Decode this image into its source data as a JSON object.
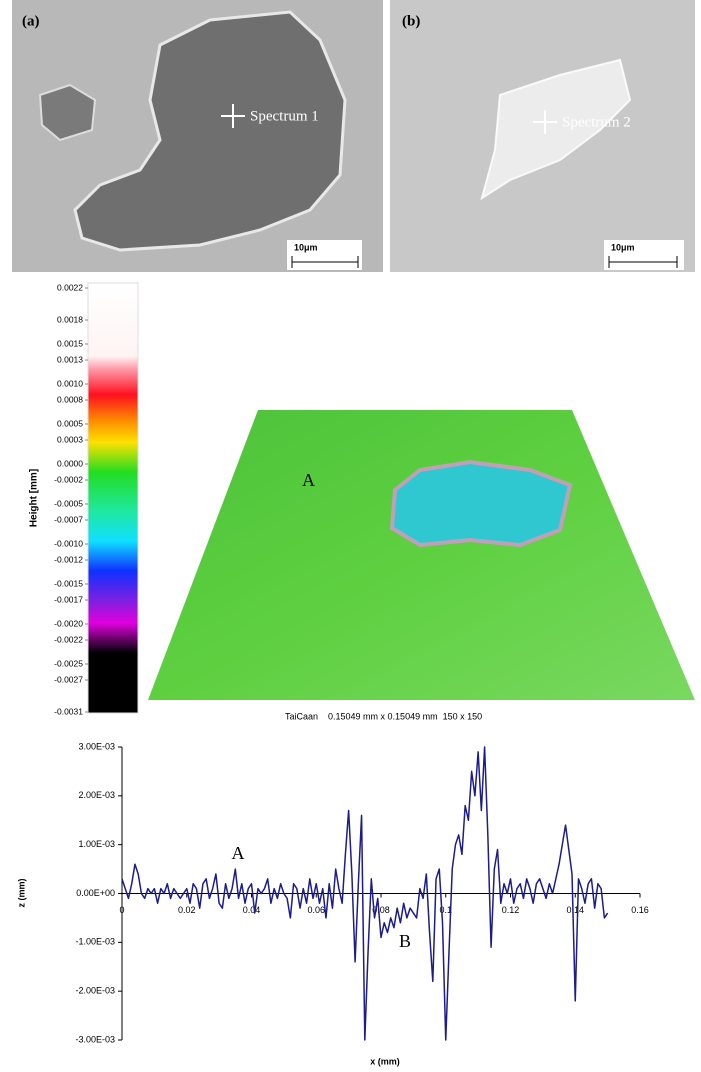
{
  "panels": [
    {
      "label": "(a)",
      "annotation": "Spectrum 1",
      "scale": "10μm"
    },
    {
      "label": "(b)",
      "annotation": "Spectrum 2",
      "scale": "10μm"
    }
  ],
  "surface": {
    "colorbar_label": "Height [mm]",
    "ylim": [
      -0.0031,
      0.0022
    ],
    "ticks": [
      0.0022,
      0.0018,
      0.0015,
      0.0013,
      {
        "value": 0.001,
        "label": "0.0010"
      },
      0.0008,
      0.0005,
      0.0003,
      {
        "value": 0,
        "label": "0.0000"
      },
      -0.0002,
      -0.0005,
      -0.0007,
      {
        "value": -0.001,
        "label": "-0.0010"
      },
      -0.0012,
      -0.0015,
      -0.0017,
      {
        "value": -0.002,
        "label": "-0.0020"
      },
      -0.0022,
      -0.0025,
      -0.0027,
      -0.0031
    ],
    "annotation": "A",
    "caption": "TaiCaan    0.15049 mm x 0.15049 mm  150 x 150"
  },
  "chart_data": {
    "type": "line",
    "xlabel": "x (mm)",
    "ylabel": "z (mm)",
    "annotations": [
      "A",
      "B"
    ],
    "color": "#1c1c8a",
    "xlim": [
      0,
      0.16
    ],
    "xticks": [
      0,
      0.02,
      0.04,
      0.06,
      0.08,
      0.1,
      0.12,
      0.14,
      0.16
    ],
    "ylim": [
      -0.003,
      0.003
    ],
    "yticks": [
      {
        "value": -0.003,
        "label": "-3.00E-03"
      },
      {
        "value": -0.002,
        "label": "-2.00E-03"
      },
      {
        "value": -0.001,
        "label": "-1.00E-03"
      },
      {
        "value": 0,
        "label": "0.00E+00"
      },
      {
        "value": 0.001,
        "label": "1.00E-03"
      },
      {
        "value": 0.002,
        "label": "2.00E-03"
      },
      {
        "value": 0.003,
        "label": "3.00E-03"
      }
    ],
    "x": [
      0,
      0.001,
      0.002,
      0.003,
      0.004,
      0.005,
      0.006,
      0.007,
      0.008,
      0.009,
      0.01,
      0.011,
      0.012,
      0.013,
      0.014,
      0.015,
      0.016,
      0.017,
      0.018,
      0.019,
      0.02,
      0.021,
      0.022,
      0.023,
      0.024,
      0.025,
      0.026,
      0.027,
      0.028,
      0.029,
      0.03,
      0.031,
      0.032,
      0.033,
      0.034,
      0.035,
      0.036,
      0.037,
      0.038,
      0.039,
      0.04,
      0.041,
      0.042,
      0.043,
      0.044,
      0.045,
      0.046,
      0.047,
      0.048,
      0.049,
      0.05,
      0.051,
      0.052,
      0.053,
      0.054,
      0.055,
      0.056,
      0.057,
      0.058,
      0.059,
      0.06,
      0.061,
      0.062,
      0.063,
      0.064,
      0.065,
      0.066,
      0.067,
      0.068,
      0.069,
      0.07,
      0.071,
      0.072,
      0.073,
      0.074,
      0.075,
      0.076,
      0.077,
      0.078,
      0.079,
      0.08,
      0.081,
      0.082,
      0.083,
      0.084,
      0.085,
      0.086,
      0.087,
      0.088,
      0.089,
      0.09,
      0.091,
      0.092,
      0.093,
      0.094,
      0.095,
      0.096,
      0.097,
      0.098,
      0.099,
      0.1,
      0.101,
      0.102,
      0.103,
      0.104,
      0.105,
      0.106,
      0.107,
      0.108,
      0.109,
      0.11,
      0.111,
      0.112,
      0.113,
      0.114,
      0.115,
      0.116,
      0.117,
      0.118,
      0.119,
      0.12,
      0.121,
      0.122,
      0.123,
      0.124,
      0.125,
      0.126,
      0.127,
      0.128,
      0.129,
      0.13,
      0.131,
      0.132,
      0.133,
      0.134,
      0.135,
      0.136,
      0.137,
      0.138,
      0.139,
      0.14,
      0.141,
      0.142,
      0.143,
      0.144,
      0.145,
      0.146,
      0.147,
      0.148,
      0.149,
      0.15
    ],
    "values": [
      0.0003,
      0.0001,
      -0.0001,
      0.0002,
      0.0006,
      0.0004,
      0,
      -0.0001,
      0.0001,
      0,
      0.0001,
      -0.0002,
      0.0001,
      0,
      0.0002,
      -0.0001,
      0.0001,
      0,
      -0.0001,
      0,
      0.0001,
      -0.0002,
      0.0002,
      0.0001,
      -0.0003,
      0.0002,
      0.0003,
      -0.0001,
      0.0001,
      0.0004,
      -0.0002,
      -0.0003,
      0.0002,
      -0.0001,
      0.0001,
      0.0005,
      -0.0001,
      0.0002,
      -0.0002,
      0.0001,
      0.0002,
      -0.0004,
      0.0001,
      0,
      0.0001,
      0.0003,
      -0.0002,
      0.0001,
      -0.0001,
      0.0002,
      0,
      -0.0001,
      -0.0005,
      0.0002,
      0.0001,
      -0.0003,
      0.0001,
      -0.0002,
      0.0003,
      -0.0001,
      0.0002,
      -0.0002,
      0.0001,
      -0.0005,
      0.0002,
      -0.0003,
      0.0005,
      0.0001,
      -0.0002,
      0.0008,
      0.0017,
      0.0004,
      -0.0014,
      0.0002,
      0.0016,
      -0.003,
      -0.0012,
      0.0003,
      -0.0005,
      -0.0001,
      -0.0009,
      -0.0006,
      -0.0008,
      -0.0005,
      -0.0007,
      -0.0003,
      -0.0006,
      -0.0002,
      -0.0005,
      -0.0003,
      -0.0004,
      -0.0005,
      0.0001,
      -0.0001,
      0.0004,
      -0.0008,
      -0.0018,
      0.0003,
      0.0005,
      -0.0006,
      -0.003,
      -0.0012,
      0.0005,
      0.001,
      0.0012,
      0.0008,
      0.0018,
      0.0015,
      0.0025,
      0.002,
      0.0029,
      0.0017,
      0.003,
      0.0012,
      -0.0011,
      0.0005,
      0.0009,
      -0.0002,
      0.0002,
      0,
      0.0003,
      -0.0002,
      0.0001,
      0.0002,
      -0.0001,
      0.0003,
      0.0001,
      -0.0002,
      0.0002,
      0.0003,
      0.0001,
      -0.0001,
      0.0002,
      0,
      0.0003,
      0.0006,
      0.001,
      0.0014,
      0.0009,
      0.0004,
      -0.0022,
      0.0003,
      0.0001,
      -0.0002,
      0.0002,
      0.0003,
      -0.0003,
      0.0002,
      0.0001,
      -0.0005,
      -0.0004
    ]
  }
}
